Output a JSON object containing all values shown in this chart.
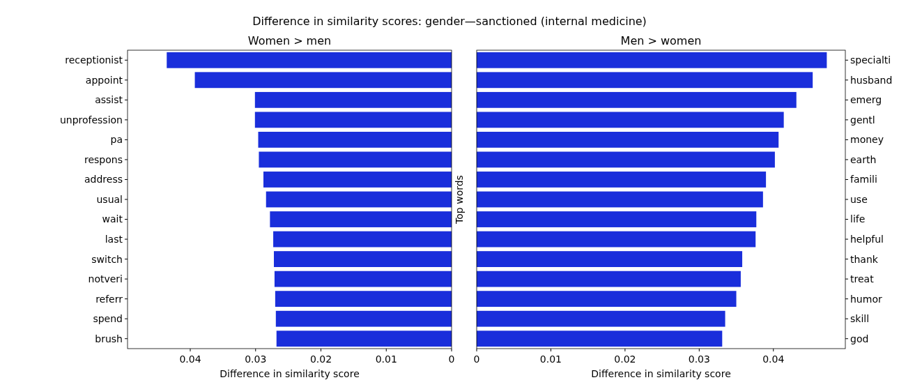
{
  "chart_data": [
    {
      "type": "bar",
      "orientation": "horizontal",
      "title": "Women > men",
      "xlabel": "Difference in similarity score",
      "annotations": [
        "Difference in similarity scores: gender—sanctioned (internal medicine)"
      ],
      "categories": [
        "receptionist",
        "appoint",
        "assist",
        "unprofession",
        "pa",
        "respons",
        "address",
        "usual",
        "wait",
        "last",
        "switch",
        "notveri",
        "referr",
        "spend",
        "brush"
      ],
      "values": [
        0.0436,
        0.0393,
        0.0301,
        0.0301,
        0.0296,
        0.0295,
        0.0288,
        0.0284,
        0.0278,
        0.0273,
        0.0272,
        0.0271,
        0.027,
        0.0269,
        0.0268
      ],
      "color": "#1a2edb",
      "xlim": [
        0.0496,
        0
      ],
      "xticks": [
        0.04,
        0.03,
        0.02,
        0.01,
        0
      ]
    },
    {
      "type": "bar",
      "orientation": "horizontal",
      "title": "Men > women",
      "xlabel": "Difference in similarity score",
      "ylabel": "Top words",
      "categories": [
        "specialti",
        "husband",
        "emerg",
        "gentl",
        "money",
        "earth",
        "famili",
        "use",
        "life",
        "helpful",
        "thank",
        "treat",
        "humor",
        "skill",
        "god"
      ],
      "values": [
        0.0472,
        0.0453,
        0.0431,
        0.0414,
        0.0407,
        0.0402,
        0.039,
        0.0386,
        0.0377,
        0.0376,
        0.0358,
        0.0356,
        0.035,
        0.0335,
        0.0331
      ],
      "color": "#1a2edb",
      "xlim": [
        0,
        0.0497
      ],
      "xticks": [
        0,
        0.01,
        0.02,
        0.03,
        0.04
      ]
    }
  ]
}
